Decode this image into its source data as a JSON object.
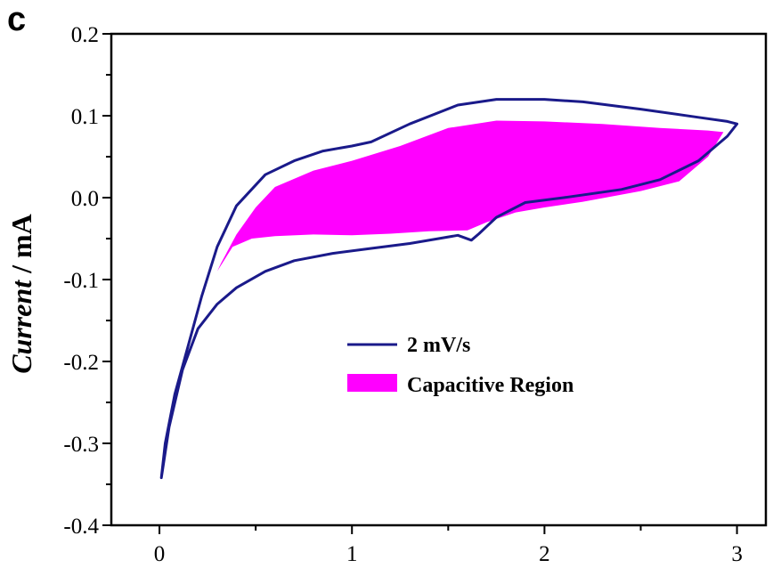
{
  "panel_label": "c",
  "chart_data": {
    "type": "line",
    "title": "",
    "xlabel": "",
    "ylabel": {
      "italic": "Current",
      "rest": " / mA"
    },
    "xlim": [
      -0.25,
      3.15
    ],
    "ylim": [
      -0.4,
      0.2
    ],
    "xticks": [
      0,
      1,
      2,
      3
    ],
    "xtick_labels": [
      "0",
      "1",
      "2",
      "3"
    ],
    "yticks": [
      -0.4,
      -0.3,
      -0.2,
      -0.1,
      0.0,
      0.1,
      0.2
    ],
    "ytick_labels": [
      "-0.4",
      "-0.3",
      "-0.2",
      "-0.1",
      "0.0",
      "0.1",
      "0.2"
    ],
    "grid": false,
    "legend_position": "center-right",
    "colors": {
      "cv_line": "#1a1a8a",
      "capacitive_fill": "#ff00ff"
    },
    "series": [
      {
        "name": "2 mV/s",
        "kind": "line",
        "points": [
          [
            0.01,
            -0.342
          ],
          [
            0.05,
            -0.28
          ],
          [
            0.12,
            -0.21
          ],
          [
            0.2,
            -0.16
          ],
          [
            0.3,
            -0.13
          ],
          [
            0.4,
            -0.11
          ],
          [
            0.55,
            -0.09
          ],
          [
            0.7,
            -0.077
          ],
          [
            0.9,
            -0.068
          ],
          [
            1.1,
            -0.062
          ],
          [
            1.3,
            -0.056
          ],
          [
            1.45,
            -0.05
          ],
          [
            1.55,
            -0.046
          ],
          [
            1.62,
            -0.052
          ],
          [
            1.66,
            -0.044
          ],
          [
            1.75,
            -0.024
          ],
          [
            1.9,
            -0.006
          ],
          [
            2.1,
            0.0
          ],
          [
            2.4,
            0.01
          ],
          [
            2.6,
            0.022
          ],
          [
            2.8,
            0.045
          ],
          [
            2.95,
            0.075
          ],
          [
            3.0,
            0.09
          ],
          [
            2.95,
            0.093
          ],
          [
            2.8,
            0.098
          ],
          [
            2.5,
            0.108
          ],
          [
            2.2,
            0.117
          ],
          [
            2.0,
            0.12
          ],
          [
            1.75,
            0.12
          ],
          [
            1.55,
            0.113
          ],
          [
            1.3,
            0.09
          ],
          [
            1.1,
            0.068
          ],
          [
            1.0,
            0.063
          ],
          [
            0.85,
            0.057
          ],
          [
            0.7,
            0.045
          ],
          [
            0.55,
            0.028
          ],
          [
            0.4,
            -0.01
          ],
          [
            0.3,
            -0.06
          ],
          [
            0.22,
            -0.12
          ],
          [
            0.15,
            -0.18
          ],
          [
            0.08,
            -0.24
          ],
          [
            0.03,
            -0.3
          ],
          [
            0.01,
            -0.342
          ]
        ]
      },
      {
        "name": "Capacitive Region",
        "kind": "area",
        "points": [
          [
            0.3,
            -0.09
          ],
          [
            0.38,
            -0.06
          ],
          [
            0.48,
            -0.05
          ],
          [
            0.6,
            -0.047
          ],
          [
            0.8,
            -0.045
          ],
          [
            1.0,
            -0.046
          ],
          [
            1.2,
            -0.044
          ],
          [
            1.4,
            -0.041
          ],
          [
            1.6,
            -0.04
          ],
          [
            1.7,
            -0.03
          ],
          [
            1.85,
            -0.018
          ],
          [
            2.0,
            -0.012
          ],
          [
            2.2,
            -0.005
          ],
          [
            2.5,
            0.008
          ],
          [
            2.7,
            0.02
          ],
          [
            2.85,
            0.05
          ],
          [
            2.93,
            0.08
          ],
          [
            2.85,
            0.082
          ],
          [
            2.6,
            0.085
          ],
          [
            2.3,
            0.09
          ],
          [
            2.0,
            0.093
          ],
          [
            1.75,
            0.094
          ],
          [
            1.5,
            0.085
          ],
          [
            1.25,
            0.063
          ],
          [
            1.0,
            0.045
          ],
          [
            0.8,
            0.033
          ],
          [
            0.6,
            0.013
          ],
          [
            0.5,
            -0.012
          ],
          [
            0.4,
            -0.045
          ],
          [
            0.32,
            -0.08
          ],
          [
            0.3,
            -0.09
          ]
        ]
      }
    ]
  }
}
